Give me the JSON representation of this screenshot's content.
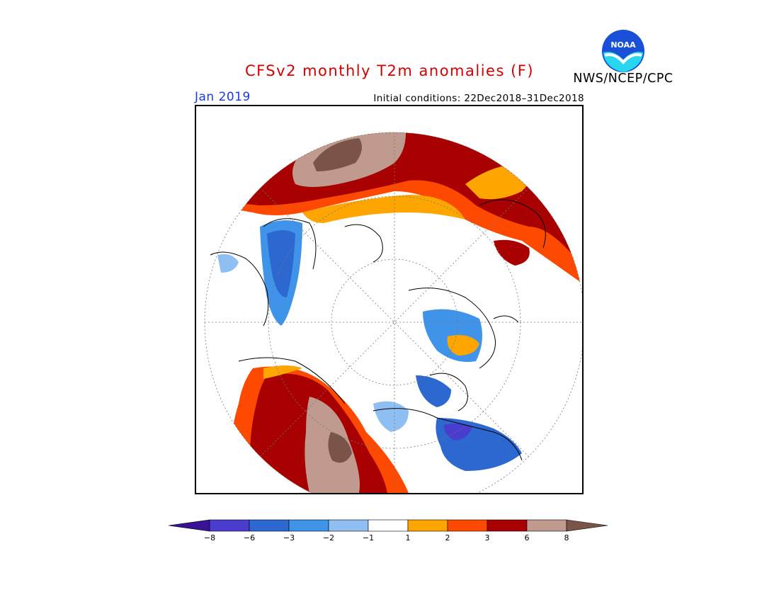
{
  "header": {
    "title": "CFSv2 monthly T2m anomalies (F)",
    "organization": "NWS/NCEP/CPC",
    "logo_text": "NOAA",
    "valid_month": "Jan 2019",
    "initial_conditions": "Initial conditions: 22Dec2018–31Dec2018"
  },
  "colors": {
    "title": "#d40000",
    "month": "#1a3cdc"
  },
  "colorbar": {
    "bins": [
      {
        "color": "#3a1296",
        "role": "below -8"
      },
      {
        "color": "#4a3ccc",
        "role": "-8 to -6"
      },
      {
        "color": "#2c68cf",
        "role": "-6 to -3"
      },
      {
        "color": "#3f93e8",
        "role": "-3 to -2"
      },
      {
        "color": "#8fbff2",
        "role": "-2 to -1"
      },
      {
        "color": "#ffffff",
        "role": "-1 to 1"
      },
      {
        "color": "#fea500",
        "role": "1 to 2"
      },
      {
        "color": "#fe4a00",
        "role": "2 to 3"
      },
      {
        "color": "#a80000",
        "role": "3 to 6"
      },
      {
        "color": "#c09a8e",
        "role": "6 to 8"
      },
      {
        "color": "#7a5448",
        "role": "above 8"
      }
    ],
    "ticks": [
      "−8",
      "−6",
      "−3",
      "−2",
      "−1",
      "1",
      "2",
      "3",
      "6",
      "8"
    ]
  }
}
